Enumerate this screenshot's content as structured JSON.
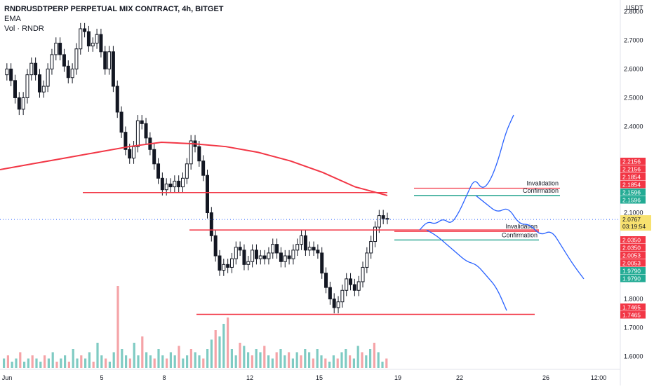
{
  "header": {
    "title": "RNDRUSDTPERP PERPETUAL MIX CONTRACT, 4h, BITGET",
    "indicator_ema": "EMA",
    "indicator_vol": "Vol · RNDR"
  },
  "price_axis": {
    "currency": "USDT",
    "ticks": [
      "2.8000",
      "2.7000",
      "2.6000",
      "2.5000",
      "2.4000",
      "2.1000",
      "1.8000",
      "1.7000",
      "1.6000"
    ]
  },
  "time_axis": {
    "ticks": [
      "Jun",
      "5",
      "8",
      "12",
      "15",
      "19",
      "22",
      "26",
      "12:00"
    ]
  },
  "current_price": {
    "value": "2.0767",
    "countdown": "03:19:54"
  },
  "price_tags": [
    {
      "value": "2.2156",
      "color": "#f23645"
    },
    {
      "value": "2.2156",
      "color": "#f23645"
    },
    {
      "value": "2.1854",
      "color": "#f23645"
    },
    {
      "value": "2.1854",
      "color": "#f23645"
    },
    {
      "value": "2.1596",
      "color": "#22ab94"
    },
    {
      "value": "2.1596",
      "color": "#22ab94"
    },
    {
      "value": "2.0350",
      "color": "#f23645"
    },
    {
      "value": "2.0350",
      "color": "#f23645"
    },
    {
      "value": "2.0053",
      "color": "#f23645"
    },
    {
      "value": "2.0053",
      "color": "#f23645"
    },
    {
      "value": "1.9790",
      "color": "#22ab94"
    },
    {
      "value": "1.9790",
      "color": "#22ab94"
    },
    {
      "value": "1.7465",
      "color": "#f23645"
    },
    {
      "value": "1.7465",
      "color": "#f23645"
    }
  ],
  "annotations": [
    {
      "text": "Invalidation",
      "price": 2.1854
    },
    {
      "text": "Confirmation",
      "price": 2.1596
    },
    {
      "text": "Invalidation",
      "price": 2.035
    },
    {
      "text": "Confirmation",
      "price": 2.0053
    }
  ],
  "colors": {
    "up": "#26a69a",
    "down": "#131722",
    "ema": "#f23645",
    "vol_up": "#7fcbc3",
    "vol_down": "#f5a3a7",
    "hline": "#f23645",
    "confirm": "#089981",
    "projection": "#2962ff"
  },
  "chart_data": {
    "type": "candlestick",
    "title": "RNDRUSDTPERP PERPETUAL MIX CONTRACT, 4h, BITGET",
    "ylabel": "USDT",
    "ylim": [
      1.56,
      2.84
    ],
    "grid": false,
    "candles": {
      "count": 138,
      "path": [
        2.58,
        2.62,
        2.55,
        2.48,
        2.45,
        2.52,
        2.6,
        2.62,
        2.57,
        2.5,
        2.54,
        2.62,
        2.66,
        2.7,
        2.64,
        2.6,
        2.55,
        2.62,
        2.7,
        2.76,
        2.72,
        2.66,
        2.7,
        2.74,
        2.63,
        2.58,
        2.7,
        2.5,
        2.42,
        2.36,
        2.3,
        2.28,
        2.36,
        2.45,
        2.4,
        2.34,
        2.31,
        2.25,
        2.2,
        2.16,
        2.22,
        2.18,
        2.23,
        2.17,
        2.24,
        2.28,
        2.38,
        2.32,
        2.26,
        2.21,
        2.05,
        2.0,
        1.93,
        1.88,
        1.94,
        1.9,
        1.96,
        2.0,
        1.97,
        1.9,
        1.94,
        1.99,
        1.92,
        1.96,
        1.93,
        1.98,
        2.0,
        1.95,
        1.92,
        1.96,
        1.94,
        1.98,
        2.0,
        2.03,
        1.95,
        1.99,
        1.97,
        1.95,
        1.86,
        1.82,
        1.78,
        1.76,
        1.8,
        1.85,
        1.88,
        1.84,
        1.82,
        1.88,
        1.93,
        1.98,
        2.02,
        2.07,
        2.11,
        2.08,
        2.07
      ],
      "values": [
        2.58,
        2.6,
        2.56,
        2.5,
        2.46,
        2.5,
        2.58,
        2.62,
        2.58,
        2.52,
        2.54,
        2.6,
        2.65,
        2.69,
        2.65,
        2.61,
        2.57,
        2.6,
        2.67,
        2.74,
        2.73,
        2.68,
        2.69,
        2.72,
        2.66,
        2.6,
        2.66,
        2.54,
        2.45,
        2.38,
        2.32,
        2.29,
        2.33,
        2.42,
        2.41,
        2.36,
        2.32,
        2.27,
        2.22,
        2.18,
        2.2,
        2.19,
        2.21,
        2.19,
        2.22,
        2.27,
        2.35,
        2.33,
        2.28,
        2.23,
        2.1,
        2.02,
        1.95,
        1.9,
        1.92,
        1.91,
        1.94,
        1.98,
        1.97,
        1.92,
        1.93,
        1.97,
        1.94,
        1.95,
        1.94,
        1.96,
        1.99,
        1.96,
        1.93,
        1.95,
        1.94,
        1.97,
        1.99,
        2.02,
        1.97,
        1.98,
        1.97,
        1.96,
        1.89,
        1.84,
        1.8,
        1.77,
        1.79,
        1.83,
        1.87,
        1.85,
        1.83,
        1.86,
        1.91,
        1.96,
        2.0,
        2.05,
        2.09,
        2.08,
        2.08
      ]
    },
    "series": [
      {
        "name": "EMA",
        "values": [
          2.25,
          2.27,
          2.29,
          2.31,
          2.33,
          2.345,
          2.34,
          2.33,
          2.31,
          2.28,
          2.24,
          2.19,
          2.16
        ]
      }
    ],
    "horizontal_levels": [
      2.17,
      2.04,
      1.7465
    ],
    "projection_paths": [
      {
        "points": [
          [
            0,
            2.04
          ],
          [
            1,
            2.07
          ],
          [
            2,
            2.06
          ],
          [
            3,
            2.08
          ],
          [
            4,
            2.06
          ],
          [
            5,
            2.1
          ],
          [
            6,
            2.16
          ],
          [
            7,
            2.22
          ],
          [
            8,
            2.18
          ],
          [
            9,
            2.21
          ],
          [
            10,
            2.28
          ],
          [
            11,
            2.38
          ],
          [
            12,
            2.44
          ]
        ]
      },
      {
        "points": [
          [
            0,
            2.16
          ],
          [
            1,
            2.13
          ],
          [
            2,
            2.1
          ],
          [
            3,
            2.12
          ],
          [
            4,
            2.06
          ],
          [
            5,
            2.06
          ],
          [
            6,
            2.02
          ],
          [
            7,
            2.04
          ],
          [
            8,
            1.98
          ],
          [
            9,
            1.92
          ],
          [
            10,
            1.87
          ]
        ]
      },
      {
        "points": [
          [
            0,
            2.04
          ],
          [
            1,
            2.02
          ],
          [
            2,
            1.99
          ],
          [
            3,
            1.96
          ],
          [
            4,
            1.93
          ],
          [
            5,
            1.92
          ],
          [
            6,
            1.88
          ],
          [
            7,
            1.84
          ],
          [
            8,
            1.76
          ]
        ]
      }
    ],
    "volume": {
      "values": [
        3,
        4,
        2,
        3,
        5,
        2,
        3,
        4,
        3,
        2,
        4,
        3,
        5,
        2,
        3,
        4,
        2,
        6,
        3,
        4,
        3,
        5,
        2,
        8,
        4,
        3,
        2,
        5,
        26,
        6,
        4,
        3,
        8,
        4,
        10,
        5,
        4,
        3,
        6,
        4,
        3,
        5,
        4,
        7,
        3,
        4,
        6,
        5,
        4,
        3,
        6,
        9,
        12,
        10,
        14,
        16,
        6,
        4,
        8,
        7,
        5,
        4,
        6,
        5,
        7,
        4,
        3,
        5,
        6,
        4,
        5,
        3,
        5,
        4,
        6,
        5,
        3,
        6,
        4,
        3,
        2,
        4,
        3,
        5,
        6,
        4,
        3,
        7,
        5,
        4,
        6,
        8,
        5,
        2,
        3
      ]
    }
  }
}
